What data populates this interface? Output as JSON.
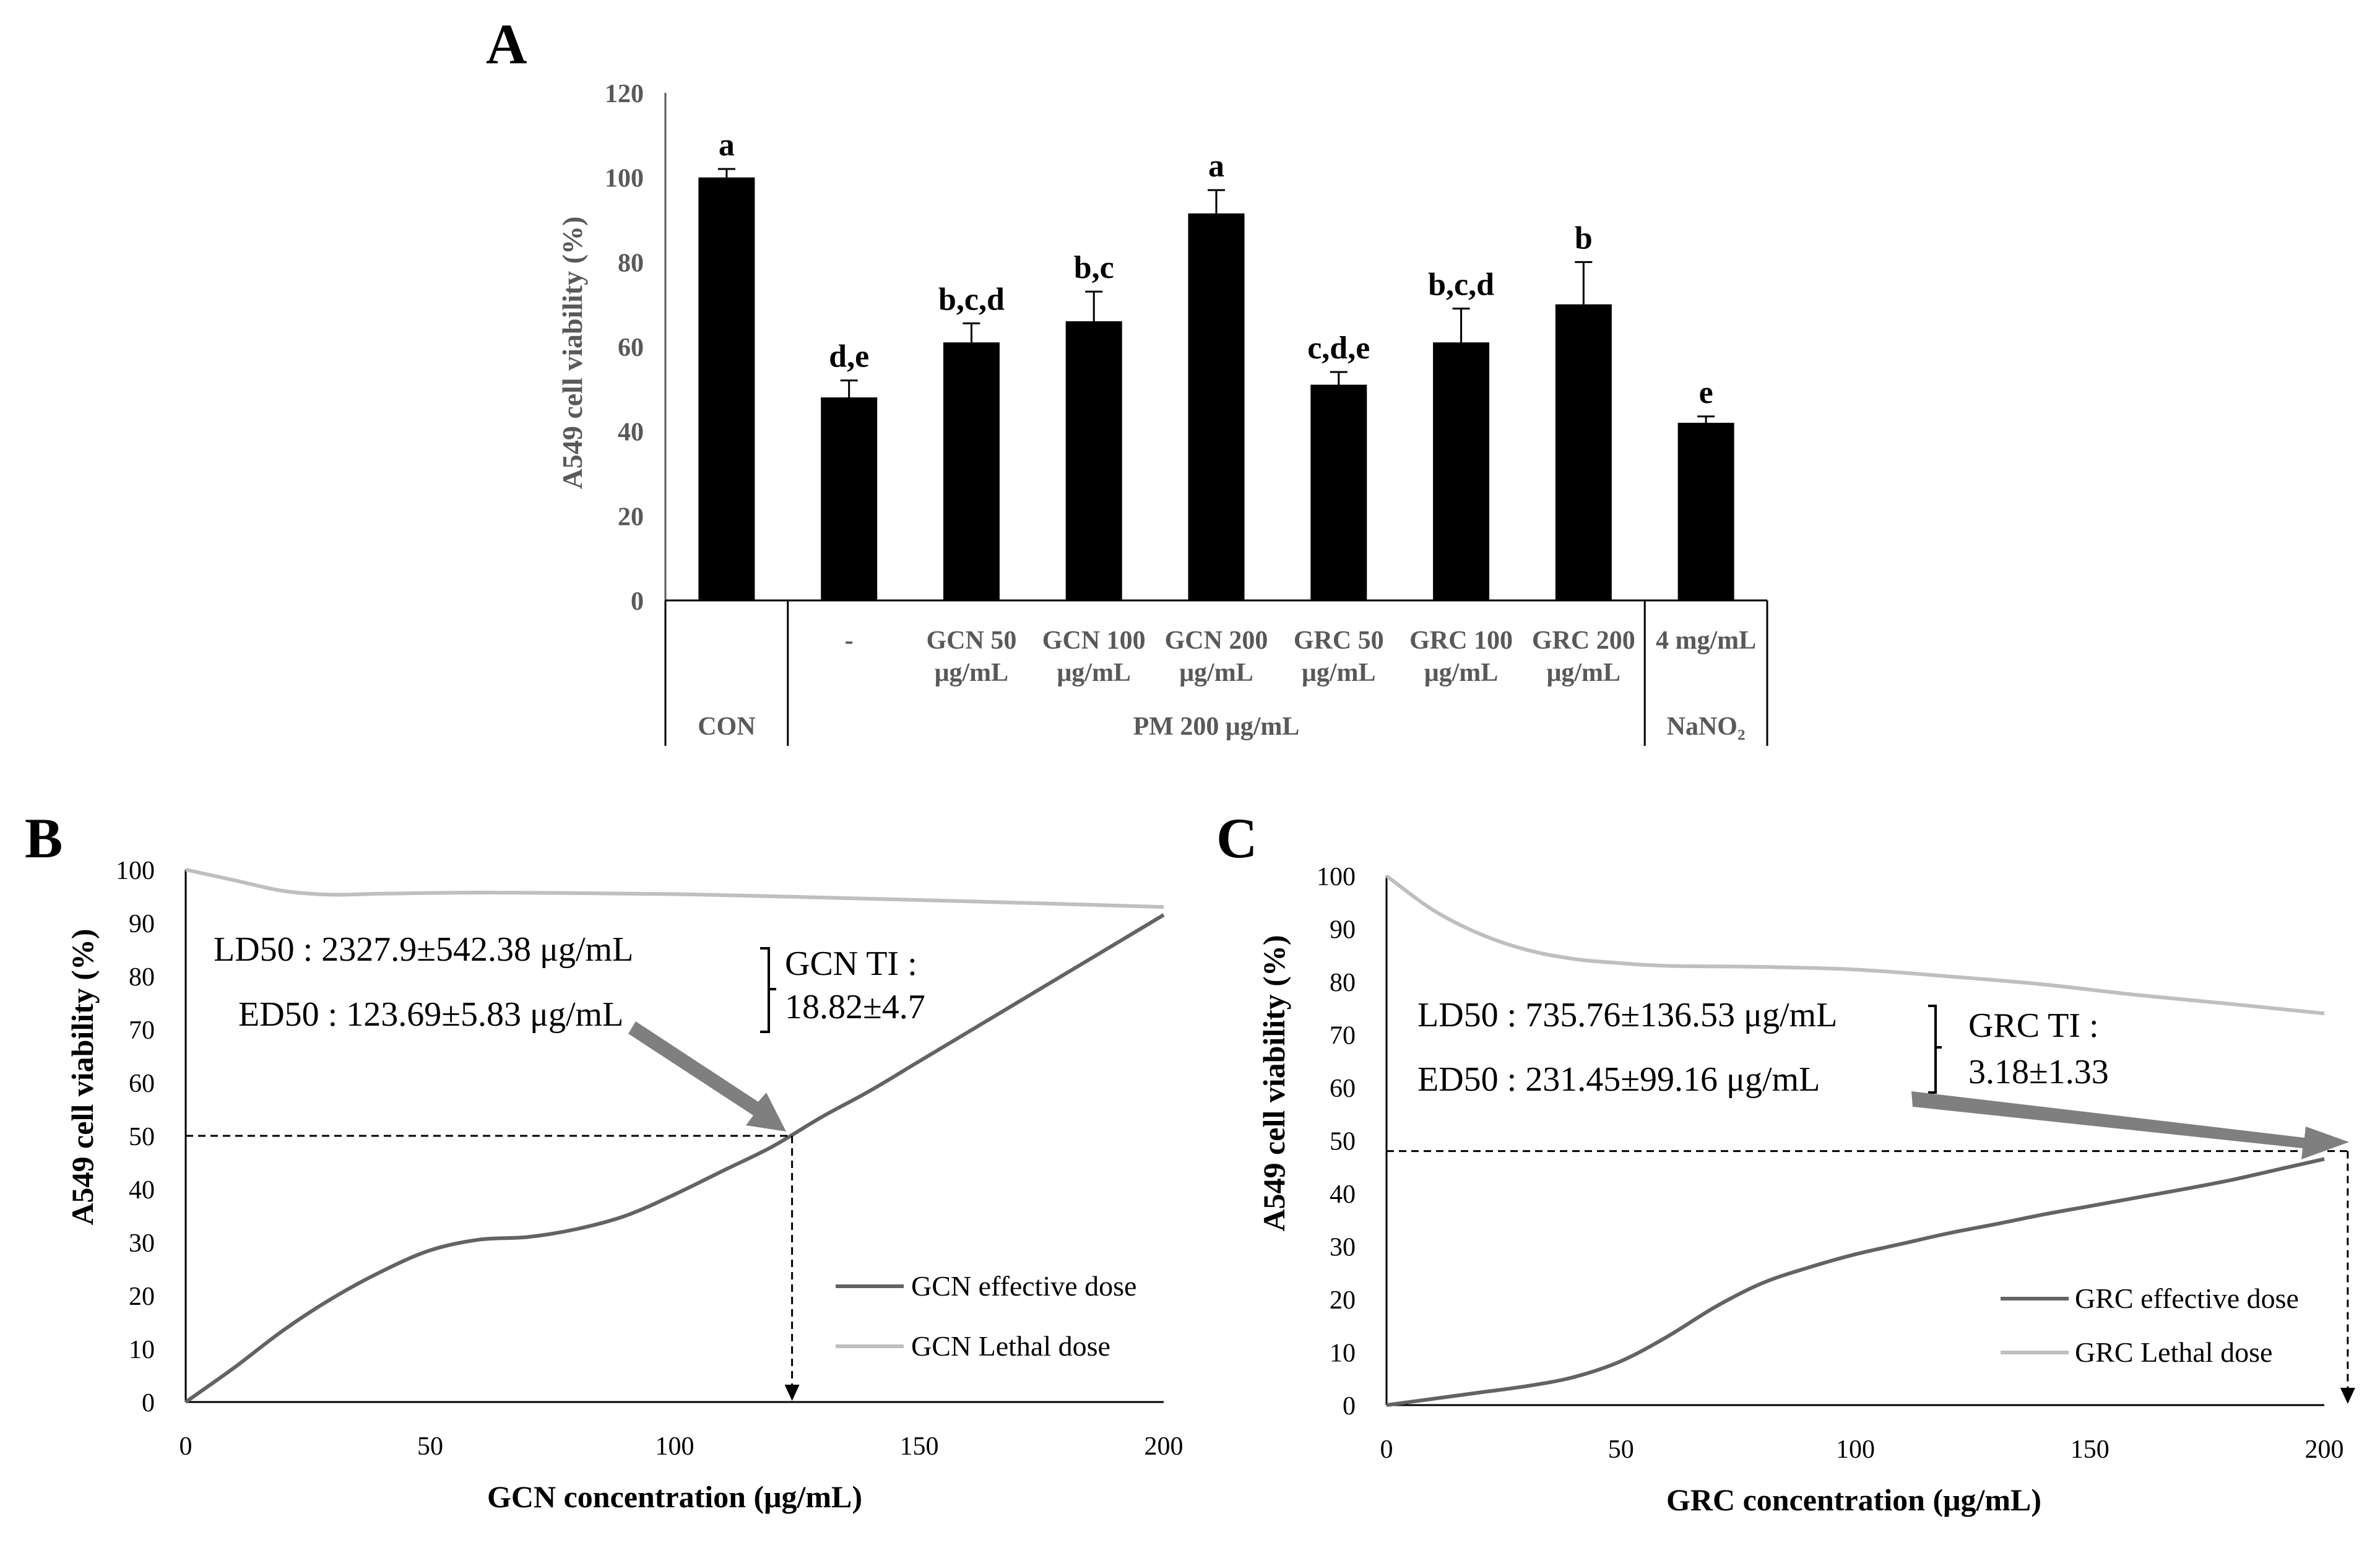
{
  "panels": {
    "A": {
      "label": "A",
      "chart_data": {
        "type": "bar",
        "ylabel": "A549 cell viability (%)",
        "ylim": [
          0,
          120
        ],
        "yticks": [
          "0",
          "20",
          "40",
          "60",
          "80",
          "100",
          "120"
        ],
        "colors": {
          "bar": "#000000",
          "axis": "#595959"
        },
        "bars": [
          {
            "label1": "",
            "label2": "",
            "value": 100,
            "error": 2,
            "letters": "a"
          },
          {
            "label1": "-",
            "label2": "",
            "value": 48,
            "error": 4,
            "letters": "d,e"
          },
          {
            "label1": "GCN 50",
            "label2": "μg/mL",
            "value": 61,
            "error": 4.5,
            "letters": "b,c,d"
          },
          {
            "label1": "GCN 100",
            "label2": "μg/mL",
            "value": 66,
            "error": 7,
            "letters": "b,c"
          },
          {
            "label1": "GCN 200",
            "label2": "μg/mL",
            "value": 91.5,
            "error": 5.5,
            "letters": "a"
          },
          {
            "label1": "GRC 50",
            "label2": "μg/mL",
            "value": 51,
            "error": 3,
            "letters": "c,d,e"
          },
          {
            "label1": "GRC 100",
            "label2": "μg/mL",
            "value": 61,
            "error": 8,
            "letters": "b,c,d"
          },
          {
            "label1": "GRC 200",
            "label2": "μg/mL",
            "value": 70,
            "error": 10,
            "letters": "b"
          },
          {
            "label1": "4 mg/mL",
            "label2": "",
            "value": 42,
            "error": 1.5,
            "letters": "e"
          }
        ],
        "groups": [
          {
            "label": "CON",
            "from": 0,
            "to": 0
          },
          {
            "label": "PM 200 μg/mL",
            "from": 1,
            "to": 7
          },
          {
            "label": "NaNO₂",
            "from": 8,
            "to": 8
          }
        ]
      }
    },
    "B": {
      "label": "B",
      "chart_data": {
        "type": "line",
        "xlabel": "GCN concentration (μg/mL)",
        "ylabel": "A549 cell viability (%)",
        "xlim": [
          0,
          200
        ],
        "ylim": [
          0,
          100
        ],
        "xticks": [
          "0",
          "50",
          "100",
          "150",
          "200"
        ],
        "yticks": [
          "0",
          "10",
          "20",
          "30",
          "40",
          "50",
          "60",
          "70",
          "80",
          "90",
          "100"
        ],
        "series": [
          {
            "name": "GCN effective dose",
            "color": "#636363",
            "x": [
              0,
              10,
              20,
              30,
              40,
              50,
              60,
              70,
              80,
              90,
              100,
              110,
              120,
              130,
              140,
              150,
              160,
              170,
              180,
              190,
              200
            ],
            "y": [
              0,
              6.5,
              13.5,
              19.5,
              24.5,
              28.5,
              30.5,
              31,
              32.5,
              35,
              39,
              43.5,
              48,
              53.5,
              58.5,
              64,
              69.5,
              75,
              80.5,
              86,
              91.5
            ]
          },
          {
            "name": "GCN Lethal dose",
            "color": "#bfbfbf",
            "x": [
              0,
              10,
              20,
              30,
              40,
              60,
              80,
              100,
              120,
              150,
              170,
              200
            ],
            "y": [
              100,
              98,
              96,
              95.3,
              95.5,
              95.7,
              95.6,
              95.4,
              95,
              94.3,
              93.8,
              93
            ]
          }
        ],
        "ed50_x": 124,
        "ed50_y": 50,
        "annotations": {
          "ld50": "LD50 : 2327.9±542.38 μg/mL",
          "ed50": "ED50 : 123.69±5.83 μg/mL",
          "ti_title": "GCN TI :",
          "ti_value": "18.82±4.7"
        }
      }
    },
    "C": {
      "label": "C",
      "chart_data": {
        "type": "line",
        "xlabel": "GRC concentration (μg/mL)",
        "ylabel": "A549 cell viability (%)",
        "xlim": [
          0,
          200
        ],
        "ylim": [
          0,
          100
        ],
        "xticks": [
          "0",
          "50",
          "100",
          "150",
          "200"
        ],
        "yticks": [
          "0",
          "10",
          "20",
          "30",
          "40",
          "50",
          "60",
          "70",
          "80",
          "90",
          "100"
        ],
        "series": [
          {
            "name": "GRC effective dose",
            "color": "#636363",
            "x": [
              0,
              10,
              20,
              30,
              40,
              50,
              60,
              70,
              80,
              90,
              100,
              110,
              120,
              130,
              140,
              150,
              160,
              170,
              180,
              190,
              200
            ],
            "y": [
              0,
              1.2,
              2.4,
              3.6,
              5.3,
              8.3,
              13,
              18.5,
              23,
              26,
              28.5,
              30.5,
              32.5,
              34.2,
              36,
              37.6,
              39.2,
              40.8,
              42.5,
              44.5,
              46.5
            ]
          },
          {
            "name": "GRC Lethal dose",
            "color": "#bfbfbf",
            "x": [
              0,
              10,
              20,
              30,
              40,
              50,
              60,
              80,
              100,
              120,
              140,
              160,
              180,
              200
            ],
            "y": [
              100,
              93.5,
              89,
              86,
              84.3,
              83.5,
              83,
              82.8,
              82.3,
              81,
              79.5,
              77.5,
              75.8,
              74
            ]
          }
        ],
        "ed50_x": 205,
        "ed50_y": 48,
        "annotations": {
          "ld50": "LD50 : 735.76±136.53 μg/mL",
          "ed50": "ED50 : 231.45±99.16 μg/mL",
          "ti_title": "GRC TI :",
          "ti_value": "3.18±1.33"
        }
      }
    }
  }
}
